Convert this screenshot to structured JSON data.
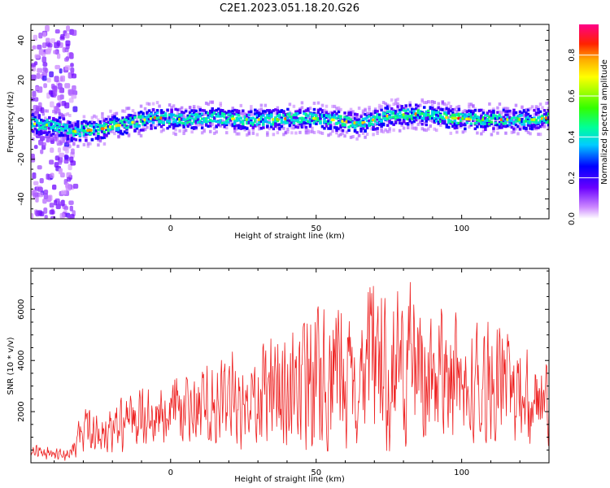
{
  "figure": {
    "title": "C2E1.2023.051.18.20.G26"
  },
  "colors": {
    "snr_line": "#ee2222",
    "axes": "#000000",
    "background": "#ffffff"
  },
  "chart_data": [
    {
      "type": "heatmap",
      "title": "",
      "xlabel": "Height of straight line (km)",
      "ylabel": "Frequency (Hz)",
      "xlim": [
        -48,
        130
      ],
      "ylim": [
        -50,
        48
      ],
      "x_ticks": [
        0,
        50,
        100
      ],
      "y_ticks": [
        -40,
        -20,
        0,
        20,
        40
      ],
      "grid": false,
      "colormap": "rainbow (white-purple-blue-cyan-green-yellow-orange-red-magenta)",
      "colorbar": {
        "label": "Normalized spectral amplitude",
        "range": [
          0.0,
          0.95
        ],
        "ticks": [
          0.0,
          0.2,
          0.4,
          0.6,
          0.8
        ]
      },
      "noise_region_x": [
        -48,
        -33
      ],
      "ridge": {
        "description": "Main spectral line near zero Doppler",
        "center_frequency_by_height": [
          {
            "x": -48,
            "y": -2
          },
          {
            "x": -40,
            "y": -3
          },
          {
            "x": -33,
            "y": -6
          },
          {
            "x": -25,
            "y": -5
          },
          {
            "x": -15,
            "y": -2
          },
          {
            "x": -5,
            "y": 1
          },
          {
            "x": 5,
            "y": 0
          },
          {
            "x": 15,
            "y": 1
          },
          {
            "x": 25,
            "y": 0
          },
          {
            "x": 35,
            "y": 0
          },
          {
            "x": 45,
            "y": 1
          },
          {
            "x": 55,
            "y": 0
          },
          {
            "x": 65,
            "y": -2
          },
          {
            "x": 75,
            "y": 2
          },
          {
            "x": 85,
            "y": 3
          },
          {
            "x": 95,
            "y": 1
          },
          {
            "x": 105,
            "y": 0
          },
          {
            "x": 115,
            "y": 0
          },
          {
            "x": 125,
            "y": 0
          },
          {
            "x": 130,
            "y": 1
          }
        ]
      }
    },
    {
      "type": "line",
      "title": "",
      "xlabel": "Height of straight line (km)",
      "ylabel": "SNR (10 * v/v)",
      "xlim": [
        -48,
        130
      ],
      "ylim": [
        0,
        7600
      ],
      "x_ticks": [
        0,
        50,
        100
      ],
      "y_ticks": [
        2000,
        4000,
        6000
      ],
      "grid": false,
      "series": [
        {
          "color": "#ee2222",
          "envelope": [
            {
              "x": -48,
              "low": 300,
              "high": 900
            },
            {
              "x": -40,
              "low": 0,
              "high": 600
            },
            {
              "x": -34,
              "low": 100,
              "high": 850
            },
            {
              "x": -30,
              "low": 200,
              "high": 2300
            },
            {
              "x": -20,
              "low": 300,
              "high": 2500
            },
            {
              "x": -10,
              "low": 500,
              "high": 3000
            },
            {
              "x": 0,
              "low": 700,
              "high": 3400
            },
            {
              "x": 10,
              "low": 800,
              "high": 3800
            },
            {
              "x": 20,
              "low": 600,
              "high": 4400
            },
            {
              "x": 30,
              "low": 400,
              "high": 4700
            },
            {
              "x": 40,
              "low": 300,
              "high": 5300
            },
            {
              "x": 50,
              "low": 200,
              "high": 6300
            },
            {
              "x": 57,
              "low": 300,
              "high": 6900
            },
            {
              "x": 65,
              "low": 100,
              "high": 6500
            },
            {
              "x": 71,
              "low": 200,
              "high": 7500
            },
            {
              "x": 80,
              "low": 300,
              "high": 7500
            },
            {
              "x": 90,
              "low": 400,
              "high": 6700
            },
            {
              "x": 100,
              "low": 500,
              "high": 6000
            },
            {
              "x": 110,
              "low": 600,
              "high": 5500
            },
            {
              "x": 120,
              "low": 800,
              "high": 5300
            },
            {
              "x": 130,
              "low": 200,
              "high": 5000
            }
          ]
        }
      ]
    }
  ]
}
